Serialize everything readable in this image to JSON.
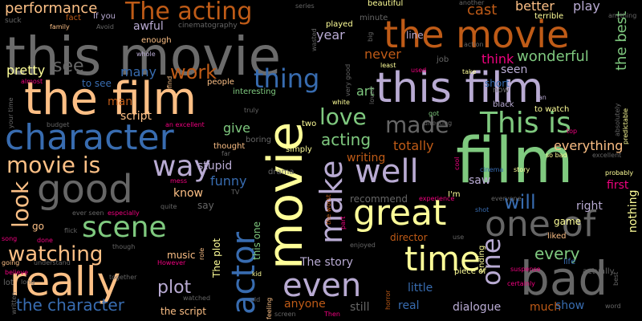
{
  "words": [
    {
      "text": "this movie",
      "color": "#6b6b6b",
      "size": 66,
      "rot": 0
    },
    {
      "text": "the film",
      "color": "#fdbf85",
      "size": 56,
      "rot": 0
    },
    {
      "text": "this film",
      "color": "#b9abd3",
      "size": 52,
      "rot": 0
    },
    {
      "text": "film",
      "color": "#7fc97f",
      "size": 78,
      "rot": 0
    },
    {
      "text": "movie",
      "color": "#ffff99",
      "size": 60,
      "rot": -90
    },
    {
      "text": "character",
      "color": "#386cb0",
      "size": 44,
      "rot": 0
    },
    {
      "text": "the movie",
      "color": "#bf5b17",
      "size": 46,
      "rot": 0
    },
    {
      "text": "good",
      "color": "#666666",
      "size": 48,
      "rot": 0
    },
    {
      "text": "great",
      "color": "#ffff99",
      "size": 44,
      "rot": 0
    },
    {
      "text": "really",
      "color": "#fdc086",
      "size": 50,
      "rot": 0
    },
    {
      "text": "bad",
      "color": "#666666",
      "size": 58,
      "rot": 0
    },
    {
      "text": "one of",
      "color": "#666666",
      "size": 44,
      "rot": 0
    },
    {
      "text": "time",
      "color": "#ffff99",
      "size": 42,
      "rot": 0
    },
    {
      "text": "even",
      "color": "#b9abd3",
      "size": 40,
      "rot": 0
    },
    {
      "text": "actor",
      "color": "#386cb0",
      "size": 40,
      "rot": -90
    },
    {
      "text": "well",
      "color": "#b9abd3",
      "size": 40,
      "rot": 0
    },
    {
      "text": "This is",
      "color": "#7fc97f",
      "size": 36,
      "rot": 0
    },
    {
      "text": "make",
      "color": "#b9abd3",
      "size": 38,
      "rot": -90
    },
    {
      "text": "scene",
      "color": "#7fc97f",
      "size": 36,
      "rot": 0
    },
    {
      "text": "way",
      "color": "#b9abd3",
      "size": 36,
      "rot": 0
    },
    {
      "text": "thing",
      "color": "#386cb0",
      "size": 32,
      "rot": 0
    },
    {
      "text": "made",
      "color": "#666666",
      "size": 28,
      "rot": 0
    },
    {
      "text": "The acting",
      "color": "#bf5b17",
      "size": 30,
      "rot": 0
    },
    {
      "text": "movie is",
      "color": "#fdc086",
      "size": 28,
      "rot": 0
    },
    {
      "text": "one",
      "color": "#b9abd3",
      "size": 32,
      "rot": -90
    },
    {
      "text": "love",
      "color": "#7fc97f",
      "size": 28,
      "rot": 0
    },
    {
      "text": "look",
      "color": "#fdc086",
      "size": 28,
      "rot": -90
    },
    {
      "text": "watching",
      "color": "#fdc086",
      "size": 26,
      "rot": 0
    },
    {
      "text": "the character",
      "color": "#386cb0",
      "size": 20,
      "rot": 0
    },
    {
      "text": "will",
      "color": "#386cb0",
      "size": 24,
      "rot": 0
    },
    {
      "text": "work",
      "color": "#bf5b17",
      "size": 24,
      "rot": 0
    },
    {
      "text": "see",
      "color": "#666666",
      "size": 22,
      "rot": 0
    },
    {
      "text": "plot",
      "color": "#b9abd3",
      "size": 22,
      "rot": 0
    },
    {
      "text": "every",
      "color": "#7fc97f",
      "size": 20,
      "rot": 0
    },
    {
      "text": "acting",
      "color": "#7fc97f",
      "size": 20,
      "rot": 0
    },
    {
      "text": "wonderful",
      "color": "#7fc97f",
      "size": 18,
      "rot": 0
    },
    {
      "text": "performance",
      "color": "#fdc086",
      "size": 18,
      "rot": 0
    },
    {
      "text": "the best",
      "color": "#7fc97f",
      "size": 18,
      "rot": -90
    },
    {
      "text": "cast",
      "color": "#bf5b17",
      "size": 18,
      "rot": 0
    },
    {
      "text": "better",
      "color": "#fdc086",
      "size": 16,
      "rot": 0
    },
    {
      "text": "play",
      "color": "#b9abd3",
      "size": 16,
      "rot": 0
    },
    {
      "text": "never",
      "color": "#bf5b17",
      "size": 16,
      "rot": 0
    },
    {
      "text": "pretty",
      "color": "#ffff99",
      "size": 16,
      "rot": 0
    },
    {
      "text": "many",
      "color": "#386cb0",
      "size": 16,
      "rot": 0
    },
    {
      "text": "funny",
      "color": "#386cb0",
      "size": 16,
      "rot": 0
    },
    {
      "text": "give",
      "color": "#7fc97f",
      "size": 16,
      "rot": 0
    },
    {
      "text": "year",
      "color": "#b9abd3",
      "size": 16,
      "rot": 0
    },
    {
      "text": "art",
      "color": "#7fc97f",
      "size": 16,
      "rot": 0
    },
    {
      "text": "totally",
      "color": "#bf5b17",
      "size": 16,
      "rot": 0
    },
    {
      "text": "everything",
      "color": "#fdc086",
      "size": 16,
      "rot": 0
    },
    {
      "text": "think",
      "color": "#f0027f",
      "size": 16,
      "rot": 0
    },
    {
      "text": "seen",
      "color": "#b9abd3",
      "size": 14,
      "rot": 0
    },
    {
      "text": "awful",
      "color": "#b9abd3",
      "size": 14,
      "rot": 0
    },
    {
      "text": "man",
      "color": "#bf5b17",
      "size": 14,
      "rot": 0
    },
    {
      "text": "script",
      "color": "#fdc086",
      "size": 14,
      "rot": 0
    },
    {
      "text": "know",
      "color": "#fdc086",
      "size": 14,
      "rot": 0
    },
    {
      "text": "stupid",
      "color": "#b9abd3",
      "size": 14,
      "rot": 0
    },
    {
      "text": "writing",
      "color": "#bf5b17",
      "size": 14,
      "rot": 0
    },
    {
      "text": "saw",
      "color": "#b9abd3",
      "size": 14,
      "rot": 0
    },
    {
      "text": "right",
      "color": "#b9abd3",
      "size": 14,
      "rot": 0
    },
    {
      "text": "first",
      "color": "#f0027f",
      "size": 14,
      "rot": 0
    },
    {
      "text": "nothing",
      "color": "#ffff99",
      "size": 14,
      "rot": -90
    },
    {
      "text": "The story",
      "color": "#b9abd3",
      "size": 14,
      "rot": 0
    },
    {
      "text": "little",
      "color": "#386cb0",
      "size": 14,
      "rot": 0
    },
    {
      "text": "real",
      "color": "#386cb0",
      "size": 14,
      "rot": 0
    },
    {
      "text": "dialogue",
      "color": "#b9abd3",
      "size": 14,
      "rot": 0
    },
    {
      "text": "much",
      "color": "#bf5b17",
      "size": 14,
      "rot": 0
    },
    {
      "text": "show",
      "color": "#386cb0",
      "size": 14,
      "rot": 0
    },
    {
      "text": "anyone",
      "color": "#bf5b17",
      "size": 14,
      "rot": 0
    },
    {
      "text": "still",
      "color": "#666666",
      "size": 14,
      "rot": 0
    },
    {
      "text": "the script",
      "color": "#fdc086",
      "size": 12,
      "rot": 0
    },
    {
      "text": "director",
      "color": "#bf5b17",
      "size": 12,
      "rot": 0
    },
    {
      "text": "music",
      "color": "#fdc086",
      "size": 12,
      "rot": 0
    },
    {
      "text": "go",
      "color": "#fdc086",
      "size": 12,
      "rot": 0
    },
    {
      "text": "say",
      "color": "#666666",
      "size": 12,
      "rot": 0
    },
    {
      "text": "recommend",
      "color": "#666666",
      "size": 12,
      "rot": 0
    },
    {
      "text": "The plot",
      "color": "#ffff99",
      "size": 12,
      "rot": -90
    },
    {
      "text": "this one",
      "color": "#7fc97f",
      "size": 12,
      "rot": -90
    },
    {
      "text": "to see",
      "color": "#386cb0",
      "size": 12,
      "rot": 0
    },
    {
      "text": "people",
      "color": "#fdc086",
      "size": 10,
      "rot": 0
    },
    {
      "text": "interesting",
      "color": "#7fc97f",
      "size": 10,
      "rot": 0
    },
    {
      "text": "two",
      "color": "#ffff99",
      "size": 10,
      "rot": 0
    },
    {
      "text": "thought",
      "color": "#fdc086",
      "size": 10,
      "rot": 0
    },
    {
      "text": "boring",
      "color": "#666666",
      "size": 10,
      "rot": 0
    },
    {
      "text": "simply",
      "color": "#ffff99",
      "size": 10,
      "rot": 0
    },
    {
      "text": "drama",
      "color": "#666666",
      "size": 10,
      "rot": 0
    },
    {
      "text": "enough",
      "color": "#fdc086",
      "size": 10,
      "rot": 0
    },
    {
      "text": "If you",
      "color": "#b9abd3",
      "size": 10,
      "rot": 0
    },
    {
      "text": "cinematography",
      "color": "#666666",
      "size": 9,
      "rot": 0
    },
    {
      "text": "beautiful",
      "color": "#ffff99",
      "size": 10,
      "rot": 0
    },
    {
      "text": "minute",
      "color": "#666666",
      "size": 10,
      "rot": 0
    },
    {
      "text": "line",
      "color": "#b9abd3",
      "size": 12,
      "rot": 0
    },
    {
      "text": "terrible",
      "color": "#ffff99",
      "size": 10,
      "rot": 0
    },
    {
      "text": "played",
      "color": "#ffff99",
      "size": 10,
      "rot": 0
    },
    {
      "text": "ending",
      "color": "#ffff99",
      "size": 10,
      "rot": -90
    },
    {
      "text": "fan",
      "color": "#b9abd3",
      "size": 8,
      "rot": 0
    },
    {
      "text": "fact",
      "color": "#bf5b17",
      "size": 10,
      "rot": 0
    },
    {
      "text": "suck",
      "color": "#666666",
      "size": 9,
      "rot": 0
    },
    {
      "text": "family",
      "color": "#fdc086",
      "size": 8,
      "rot": 0
    },
    {
      "text": "Avoid",
      "color": "#666666",
      "size": 8,
      "rot": 0
    },
    {
      "text": "whole",
      "color": "#b9abd3",
      "size": 8,
      "rot": 0
    },
    {
      "text": "find",
      "color": "#fdc086",
      "size": 8,
      "rot": -90
    },
    {
      "text": "almost",
      "color": "#f0027f",
      "size": 8,
      "rot": 0
    },
    {
      "text": "your time",
      "color": "#666666",
      "size": 8,
      "rot": -90
    },
    {
      "text": "budget",
      "color": "#666666",
      "size": 8,
      "rot": 0
    },
    {
      "text": "an excellent",
      "color": "#f0027f",
      "size": 8,
      "rot": 0
    },
    {
      "text": "truly",
      "color": "#666666",
      "size": 8,
      "rot": 0
    },
    {
      "text": "white",
      "color": "#ffff99",
      "size": 8,
      "rot": 0
    },
    {
      "text": "got",
      "color": "#7fc97f",
      "size": 8,
      "rot": 0
    },
    {
      "text": "directing",
      "color": "#666666",
      "size": 8,
      "rot": 0
    },
    {
      "text": "black",
      "color": "#b9abd3",
      "size": 10,
      "rot": 0
    },
    {
      "text": "to watch",
      "color": "#ffff99",
      "size": 10,
      "rot": 0
    },
    {
      "text": "short",
      "color": "#386cb0",
      "size": 12,
      "rot": 0
    },
    {
      "text": "now",
      "color": "#666666",
      "size": 10,
      "rot": 0
    },
    {
      "text": "take",
      "color": "#ffff99",
      "size": 8,
      "rot": 0
    },
    {
      "text": "job",
      "color": "#666666",
      "size": 10,
      "rot": 0
    },
    {
      "text": "action",
      "color": "#666666",
      "size": 8,
      "rot": 0
    },
    {
      "text": "least",
      "color": "#ffff99",
      "size": 8,
      "rot": 0
    },
    {
      "text": "another",
      "color": "#666666",
      "size": 8,
      "rot": 0
    },
    {
      "text": "series",
      "color": "#666666",
      "size": 8,
      "rot": 0
    },
    {
      "text": "wasted",
      "color": "#666666",
      "size": 8,
      "rot": -90
    },
    {
      "text": "very good",
      "color": "#666666",
      "size": 8,
      "rot": -90
    },
    {
      "text": "big",
      "color": "#666666",
      "size": 8,
      "rot": -90
    },
    {
      "text": "loved",
      "color": "#666666",
      "size": 8,
      "rot": -90
    },
    {
      "text": "used",
      "color": "#f0027f",
      "size": 8,
      "rot": 0
    },
    {
      "text": "anything",
      "color": "#666666",
      "size": 8,
      "rot": 0
    },
    {
      "text": "predictable",
      "color": "#ffff99",
      "size": 8,
      "rot": -90
    },
    {
      "text": "absolutely",
      "color": "#666666",
      "size": 8,
      "rot": -90
    },
    {
      "text": "excellent",
      "color": "#666666",
      "size": 8,
      "rot": 0
    },
    {
      "text": "top",
      "color": "#f0027f",
      "size": 8,
      "rot": 0
    },
    {
      "text": "so bad",
      "color": "#ffff99",
      "size": 8,
      "rot": 0
    },
    {
      "text": "probably",
      "color": "#ffff99",
      "size": 8,
      "rot": 0
    },
    {
      "text": "story",
      "color": "#ffff99",
      "size": 8,
      "rot": 0
    },
    {
      "text": "cinema",
      "color": "#386cb0",
      "size": 8,
      "rot": 0
    },
    {
      "text": "cool",
      "color": "#f0027f",
      "size": 8,
      "rot": -90
    },
    {
      "text": "I'm",
      "color": "#ffff99",
      "size": 10,
      "rot": 0
    },
    {
      "text": "TV",
      "color": "#666666",
      "size": 8,
      "rot": 0
    },
    {
      "text": "mess",
      "color": "#f0027f",
      "size": 8,
      "rot": 0
    },
    {
      "text": "especially",
      "color": "#f0027f",
      "size": 8,
      "rot": 0
    },
    {
      "text": "quite",
      "color": "#666666",
      "size": 8,
      "rot": 0
    },
    {
      "text": "ever seen",
      "color": "#666666",
      "size": 8,
      "rot": 0
    },
    {
      "text": "flick",
      "color": "#666666",
      "size": 8,
      "rot": 0
    },
    {
      "text": "song",
      "color": "#f0027f",
      "size": 8,
      "rot": 0
    },
    {
      "text": "done",
      "color": "#f0027f",
      "size": 8,
      "rot": 0
    },
    {
      "text": "though",
      "color": "#666666",
      "size": 8,
      "rot": 0
    },
    {
      "text": "understand",
      "color": "#666666",
      "size": 8,
      "rot": 0
    },
    {
      "text": "going",
      "color": "#fdc086",
      "size": 8,
      "rot": 0
    },
    {
      "text": "However",
      "color": "#f0027f",
      "size": 8,
      "rot": 0
    },
    {
      "text": "role",
      "color": "#fdc086",
      "size": 8,
      "rot": -90
    },
    {
      "text": "believe",
      "color": "#f0027f",
      "size": 8,
      "rot": 0
    },
    {
      "text": "lot",
      "color": "#666666",
      "size": 10,
      "rot": 0
    },
    {
      "text": "long",
      "color": "#666666",
      "size": 8,
      "rot": 0
    },
    {
      "text": "written",
      "color": "#666666",
      "size": 8,
      "rot": -90
    },
    {
      "text": "together",
      "color": "#666666",
      "size": 8,
      "rot": 0
    },
    {
      "text": "watched",
      "color": "#666666",
      "size": 8,
      "rot": 0
    },
    {
      "text": "kid",
      "color": "#ffff99",
      "size": 8,
      "rot": 0
    },
    {
      "text": "old",
      "color": "#666666",
      "size": 8,
      "rot": 0
    },
    {
      "text": "feeling",
      "color": "#fdc086",
      "size": 8,
      "rot": -90
    },
    {
      "text": "screen",
      "color": "#666666",
      "size": 8,
      "rot": 0
    },
    {
      "text": "Then",
      "color": "#f0027f",
      "size": 8,
      "rot": 0
    },
    {
      "text": "horror",
      "color": "#bf5b17",
      "size": 8,
      "rot": -90
    },
    {
      "text": "enjoyed",
      "color": "#666666",
      "size": 8,
      "rot": 0
    },
    {
      "text": "piece of",
      "color": "#ffff99",
      "size": 10,
      "rot": 0
    },
    {
      "text": "suspense",
      "color": "#f0027f",
      "size": 8,
      "rot": 0
    },
    {
      "text": "certainly",
      "color": "#f0027f",
      "size": 8,
      "rot": 0
    },
    {
      "text": "best",
      "color": "#666666",
      "size": 8,
      "rot": -90
    },
    {
      "text": "word",
      "color": "#666666",
      "size": 8,
      "rot": 0
    },
    {
      "text": "game",
      "color": "#ffff99",
      "size": 12,
      "rot": 0
    },
    {
      "text": "liked",
      "color": "#fdc086",
      "size": 10,
      "rot": 0
    },
    {
      "text": "life",
      "color": "#386cb0",
      "size": 10,
      "rot": 0
    },
    {
      "text": "actually",
      "color": "#666666",
      "size": 10,
      "rot": 0
    },
    {
      "text": "everyone",
      "color": "#666666",
      "size": 8,
      "rot": 0
    },
    {
      "text": "experience",
      "color": "#f0027f",
      "size": 8,
      "rot": 0
    },
    {
      "text": "shot",
      "color": "#386cb0",
      "size": 8,
      "rot": 0
    },
    {
      "text": "use",
      "color": "#666666",
      "size": 8,
      "rot": 0
    },
    {
      "text": "part",
      "color": "#f0027f",
      "size": 8,
      "rot": -90
    },
    {
      "text": "the worst",
      "color": "#bf5b17",
      "size": 8,
      "rot": -90
    },
    {
      "text": "far",
      "color": "#666666",
      "size": 8,
      "rot": 0
    }
  ]
}
